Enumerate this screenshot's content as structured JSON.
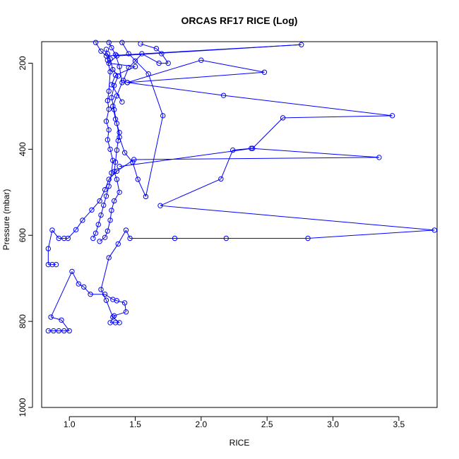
{
  "chart_data": {
    "type": "scatter",
    "title": "ORCAS RF17 RICE (Log)",
    "xlabel": "RICE",
    "ylabel": "Pressure (mbar)",
    "xlim": [
      0.79,
      3.79
    ],
    "ylim": [
      1000,
      150
    ],
    "y_reversed": true,
    "x_ticks": [
      "1.0",
      "1.5",
      "2.0",
      "2.5",
      "3.0",
      "3.5"
    ],
    "y_ticks": [
      "200",
      "400",
      "600",
      "800",
      "1000"
    ],
    "grid": false,
    "legend": "none",
    "colors": {
      "series": "#0000ff",
      "axes": "#000000"
    },
    "series": [
      {
        "values": [
          [
            0.84,
            822
          ],
          [
            0.88,
            822
          ],
          [
            0.92,
            822
          ],
          [
            0.96,
            822
          ],
          [
            1.0,
            822
          ],
          [
            0.94,
            797
          ],
          [
            0.86,
            790
          ],
          [
            1.02,
            684
          ],
          [
            1.07,
            713
          ],
          [
            1.11,
            720
          ],
          [
            1.16,
            737
          ],
          [
            1.27,
            737
          ],
          [
            1.33,
            749
          ],
          [
            1.36,
            752
          ],
          [
            1.42,
            757
          ],
          [
            1.43,
            778
          ],
          [
            1.34,
            787
          ],
          [
            1.31,
            803
          ],
          [
            1.35,
            803
          ],
          [
            1.38,
            803
          ],
          [
            1.33,
            790
          ],
          [
            1.28,
            751
          ],
          [
            1.24,
            726
          ],
          [
            1.3,
            652
          ],
          [
            1.37,
            620
          ],
          [
            1.43,
            588
          ],
          [
            1.46,
            607
          ],
          [
            1.8,
            607
          ],
          [
            2.19,
            607
          ],
          [
            2.81,
            607
          ],
          [
            3.77,
            588
          ],
          [
            1.69,
            531
          ],
          [
            2.15,
            469
          ],
          [
            2.24,
            402
          ],
          [
            2.38,
            398
          ],
          [
            3.35,
            419
          ],
          [
            1.49,
            424
          ],
          [
            1.36,
            451
          ],
          [
            1.3,
            470
          ],
          [
            1.27,
            494
          ],
          [
            1.23,
            520
          ],
          [
            1.17,
            541
          ],
          [
            1.1,
            565
          ],
          [
            1.05,
            587
          ],
          [
            0.99,
            607
          ],
          [
            0.96,
            607
          ],
          [
            0.92,
            607
          ],
          [
            0.87,
            588
          ],
          [
            0.84,
            631
          ],
          [
            0.84,
            668
          ],
          [
            0.87,
            668
          ],
          [
            0.9,
            668
          ]
        ]
      },
      {
        "values": [
          [
            1.3,
            152
          ],
          [
            1.32,
            164
          ],
          [
            1.35,
            180
          ],
          [
            1.38,
            208
          ],
          [
            1.4,
            245
          ],
          [
            1.36,
            276
          ],
          [
            1.33,
            300
          ],
          [
            1.35,
            330
          ],
          [
            1.38,
            361
          ],
          [
            1.37,
            380
          ],
          [
            1.36,
            402
          ],
          [
            1.35,
            430
          ],
          [
            1.34,
            452
          ],
          [
            1.36,
            470
          ],
          [
            1.38,
            500
          ],
          [
            1.34,
            520
          ],
          [
            1.32,
            542
          ],
          [
            1.31,
            565
          ],
          [
            1.29,
            590
          ],
          [
            1.27,
            605
          ],
          [
            1.23,
            614
          ]
        ]
      },
      {
        "values": [
          [
            1.28,
            168
          ],
          [
            1.29,
            193
          ],
          [
            1.31,
            220
          ],
          [
            1.3,
            265
          ],
          [
            1.29,
            287
          ],
          [
            1.3,
            307
          ],
          [
            1.28,
            335
          ],
          [
            1.3,
            355
          ],
          [
            1.29,
            378
          ],
          [
            1.31,
            400
          ],
          [
            1.33,
            426
          ],
          [
            1.32,
            455
          ],
          [
            1.3,
            486
          ],
          [
            1.28,
            509
          ],
          [
            1.26,
            530
          ],
          [
            1.24,
            553
          ],
          [
            1.22,
            575
          ],
          [
            1.2,
            595
          ],
          [
            1.18,
            607
          ]
        ]
      },
      {
        "values": [
          [
            1.4,
            152
          ],
          [
            1.45,
            178
          ],
          [
            1.6,
            225
          ],
          [
            1.71,
            322
          ],
          [
            1.58,
            510
          ],
          [
            1.52,
            470
          ],
          [
            1.48,
            430
          ],
          [
            1.42,
            408
          ],
          [
            1.38,
            372
          ],
          [
            1.36,
            340
          ],
          [
            1.34,
            308
          ],
          [
            1.32,
            280
          ],
          [
            1.34,
            252
          ],
          [
            1.37,
            230
          ],
          [
            1.33,
            215
          ],
          [
            1.31,
            190
          ],
          [
            1.29,
            178
          ]
        ]
      },
      {
        "values": [
          [
            1.54,
            155
          ],
          [
            1.66,
            166
          ],
          [
            1.7,
            178
          ],
          [
            1.75,
            200
          ],
          [
            1.68,
            200
          ],
          [
            1.55,
            178
          ],
          [
            1.5,
            195
          ],
          [
            1.45,
            210
          ],
          [
            1.41,
            240
          ],
          [
            1.44,
            245
          ],
          [
            2.0,
            193
          ],
          [
            2.48,
            221
          ],
          [
            1.44,
            245
          ],
          [
            2.17,
            275
          ],
          [
            3.45,
            322
          ],
          [
            2.62,
            327
          ],
          [
            2.39,
            398
          ],
          [
            1.38,
            440
          ]
        ]
      },
      {
        "values": [
          [
            1.2,
            152
          ],
          [
            1.24,
            172
          ],
          [
            1.28,
            183
          ],
          [
            2.76,
            157
          ],
          [
            1.36,
            183
          ],
          [
            1.3,
            200
          ],
          [
            1.5,
            208
          ],
          [
            1.35,
            228
          ],
          [
            1.32,
            250
          ],
          [
            1.4,
            290
          ]
        ]
      }
    ]
  }
}
